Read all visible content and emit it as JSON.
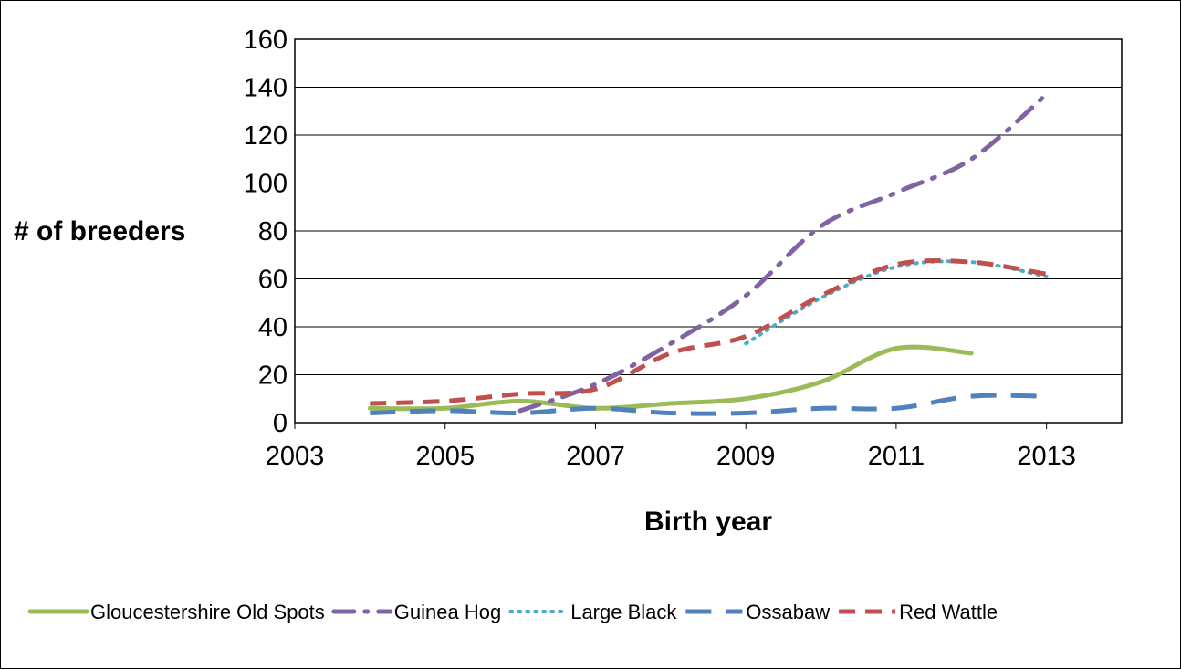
{
  "chart_data": {
    "type": "line",
    "title": "",
    "xlabel": "Birth year",
    "ylabel": "# of breeders",
    "xlim": [
      2003,
      2014
    ],
    "ylim": [
      0,
      160
    ],
    "x_ticks": [
      2003,
      2005,
      2007,
      2009,
      2011,
      2013
    ],
    "y_ticks": [
      0,
      20,
      40,
      60,
      80,
      100,
      120,
      140,
      160
    ],
    "grid": "horizontal",
    "legend_position": "bottom",
    "series": [
      {
        "name": "Gloucestershire Old Spots",
        "color": "#9bbb59",
        "dash": "solid",
        "x": [
          2004,
          2005,
          2006,
          2007,
          2008,
          2009,
          2010,
          2011,
          2012
        ],
        "y": [
          6,
          6,
          9,
          6,
          8,
          10,
          17,
          31,
          29
        ]
      },
      {
        "name": "Guinea Hog",
        "color": "#8064a2",
        "dash": "dash-dot",
        "x": [
          2006,
          2007,
          2008,
          2009,
          2010,
          2011,
          2012,
          2013
        ],
        "y": [
          5,
          16,
          33,
          53,
          82,
          96,
          110,
          137
        ]
      },
      {
        "name": "Large Black",
        "color": "#4bacc6",
        "dash": "dot",
        "x": [
          2009,
          2010,
          2011,
          2012,
          2013
        ],
        "y": [
          33,
          52,
          65,
          67,
          61
        ]
      },
      {
        "name": "Ossabaw",
        "color": "#4f81bd",
        "dash": "long-dash",
        "x": [
          2004,
          2005,
          2006,
          2007,
          2008,
          2009,
          2010,
          2011,
          2012,
          2013
        ],
        "y": [
          4,
          5,
          4,
          6,
          4,
          4,
          6,
          6,
          11,
          11
        ]
      },
      {
        "name": "Red Wattle",
        "color": "#c0504d",
        "dash": "dash",
        "x": [
          2004,
          2005,
          2006,
          2007,
          2008,
          2009,
          2010,
          2011,
          2012,
          2013
        ],
        "y": [
          8,
          9,
          12,
          14,
          29,
          36,
          53,
          66,
          67,
          62
        ]
      }
    ]
  }
}
